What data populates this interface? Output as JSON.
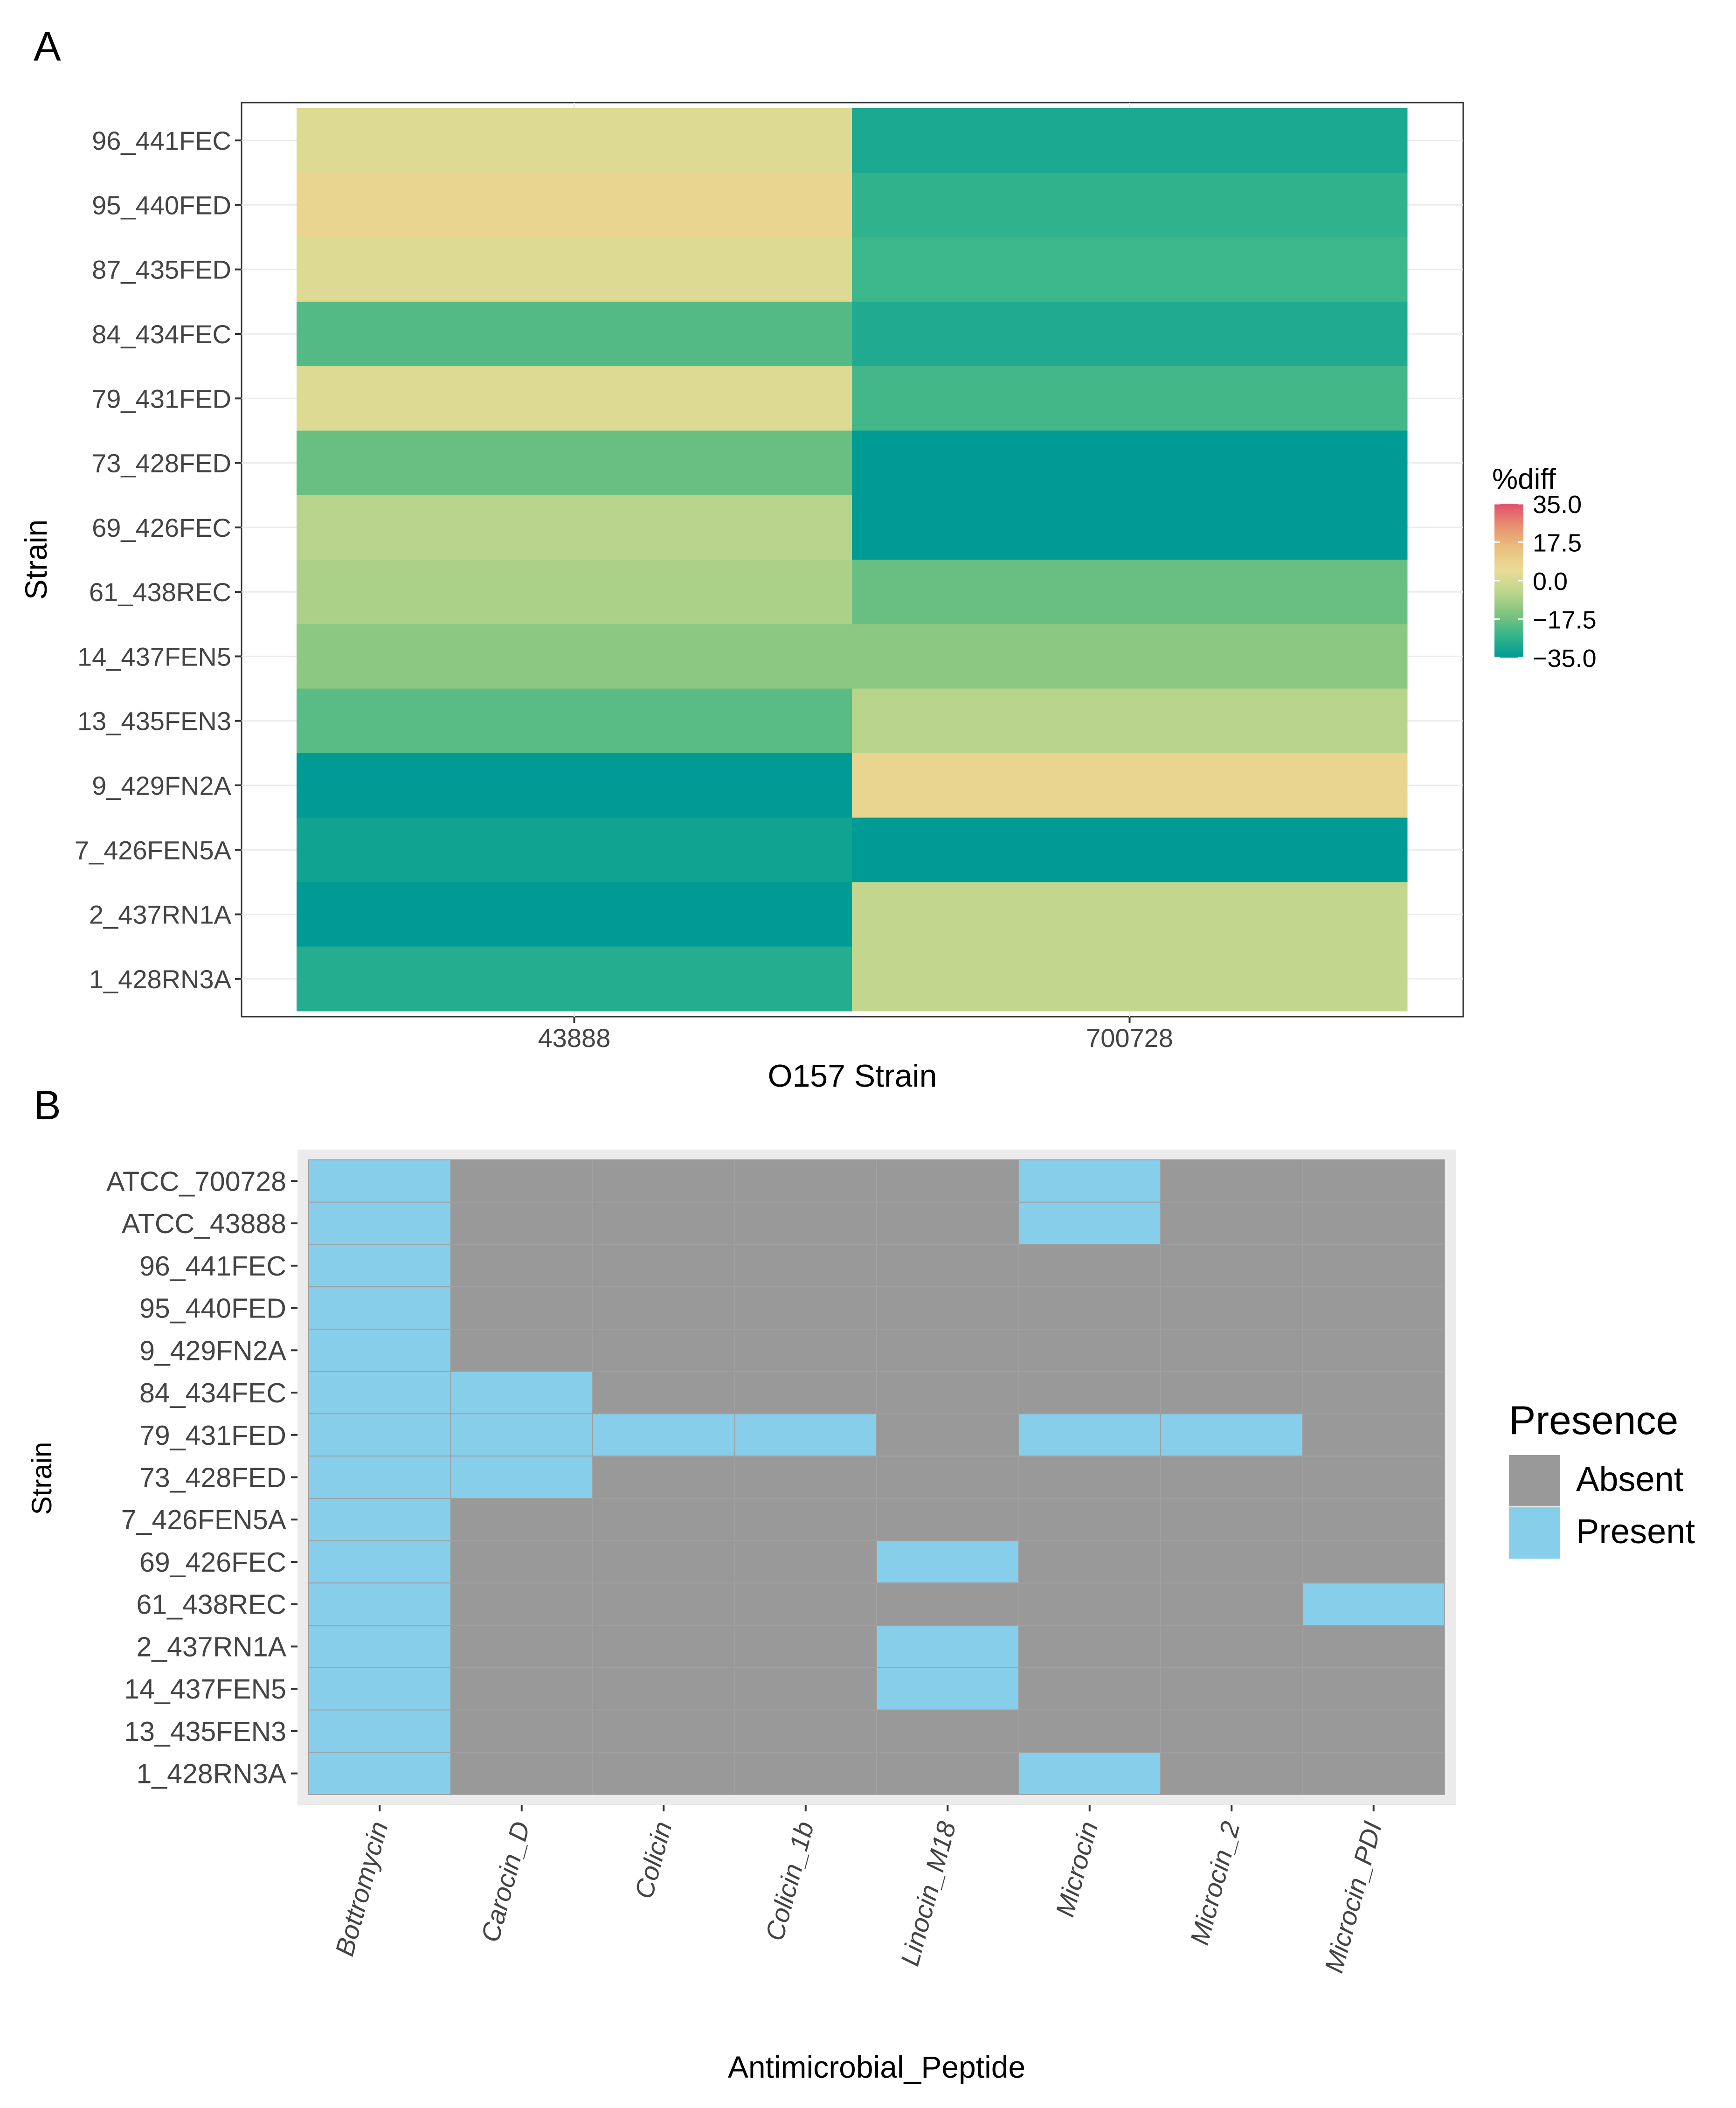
{
  "panels": {
    "a_label": "A",
    "b_label": "B"
  },
  "chart_data": [
    {
      "type": "heatmap",
      "title": "",
      "xlabel": "O157 Strain",
      "ylabel": "Strain",
      "x_categories": [
        "43888",
        "700728"
      ],
      "y_categories": [
        "96_441FEC",
        "95_440FED",
        "87_435FED",
        "84_434FEC",
        "79_431FED",
        "73_428FED",
        "69_426FEC",
        "61_438REC",
        "14_437FEN5",
        "13_435FEN3",
        "9_429FN2A",
        "7_426FEN5A",
        "2_437RN1A",
        "1_428RN3A"
      ],
      "values": [
        [
          2,
          -30
        ],
        [
          8,
          -26
        ],
        [
          2,
          -24
        ],
        [
          -21,
          -29
        ],
        [
          2,
          -23
        ],
        [
          -18,
          -35
        ],
        [
          -6,
          -35
        ],
        [
          -8,
          -18
        ],
        [
          -13,
          -13
        ],
        [
          -20,
          -6
        ],
        [
          -35,
          8
        ],
        [
          -32,
          -35
        ],
        [
          -35,
          -4
        ],
        [
          -28,
          -4
        ]
      ],
      "legend": {
        "title": "%diff",
        "position": "right",
        "ticks": [
          "35.0",
          "17.5",
          "0.0",
          "−17.5",
          "−35.0"
        ],
        "range": [
          -35,
          35
        ],
        "colors": [
          "#009b95",
          "#35b48c",
          "#7fc47e",
          "#bed68c",
          "#eadc98",
          "#e8c07c",
          "#e88f70",
          "#e24f6c"
        ]
      },
      "grid": true
    },
    {
      "type": "heatmap",
      "title": "",
      "xlabel": "Antimicrobial_Peptide",
      "ylabel": "Strain",
      "x_categories": [
        "Bottromycin",
        "Carocin_D",
        "Colicin",
        "Colicin_1b",
        "Linocin_M18",
        "Microcin",
        "Microcin_2",
        "Microcin_PDI"
      ],
      "y_categories": [
        "ATCC_700728",
        "ATCC_43888",
        "96_441FEC",
        "95_440FED",
        "9_429FN2A",
        "84_434FEC",
        "79_431FED",
        "73_428FED",
        "7_426FEN5A",
        "69_426FEC",
        "61_438REC",
        "2_437RN1A",
        "14_437FEN5",
        "13_435FEN3",
        "1_428RN3A"
      ],
      "values": [
        [
          1,
          0,
          0,
          0,
          0,
          1,
          0,
          0
        ],
        [
          1,
          0,
          0,
          0,
          0,
          1,
          0,
          0
        ],
        [
          1,
          0,
          0,
          0,
          0,
          0,
          0,
          0
        ],
        [
          1,
          0,
          0,
          0,
          0,
          0,
          0,
          0
        ],
        [
          1,
          0,
          0,
          0,
          0,
          0,
          0,
          0
        ],
        [
          1,
          1,
          0,
          0,
          0,
          0,
          0,
          0
        ],
        [
          1,
          1,
          1,
          1,
          0,
          1,
          1,
          0
        ],
        [
          1,
          1,
          0,
          0,
          0,
          0,
          0,
          0
        ],
        [
          1,
          0,
          0,
          0,
          0,
          0,
          0,
          0
        ],
        [
          1,
          0,
          0,
          0,
          1,
          0,
          0,
          0
        ],
        [
          1,
          0,
          0,
          0,
          0,
          0,
          0,
          1
        ],
        [
          1,
          0,
          0,
          0,
          1,
          0,
          0,
          0
        ],
        [
          1,
          0,
          0,
          0,
          1,
          0,
          0,
          0
        ],
        [
          1,
          0,
          0,
          0,
          0,
          0,
          0,
          0
        ],
        [
          1,
          0,
          0,
          0,
          0,
          1,
          0,
          0
        ]
      ],
      "legend": {
        "title": "Presence",
        "position": "right",
        "entries": [
          {
            "label": "Absent",
            "color": "#999999"
          },
          {
            "label": "Present",
            "color": "#87ceeb"
          }
        ]
      },
      "grid": false
    }
  ]
}
